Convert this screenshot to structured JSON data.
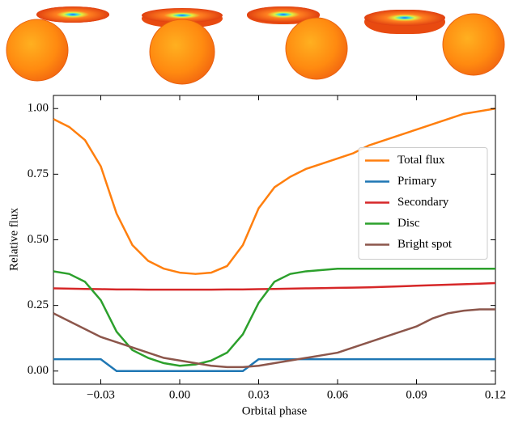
{
  "chart_data": {
    "type": "line",
    "xlabel": "Orbital phase",
    "ylabel": "Relative flux",
    "xlim": [
      -0.048,
      0.12
    ],
    "ylim": [
      -0.05,
      1.05
    ],
    "xticks": [
      {
        "value": -0.03,
        "label": "−0.03"
      },
      {
        "value": 0,
        "label": "0.00"
      },
      0.03,
      0.06,
      0.09,
      0.12
    ],
    "yticks": [
      {
        "value": 0,
        "label": "0.00"
      },
      0.25,
      {
        "value": 0.5,
        "label": "0.50"
      },
      0.75,
      {
        "value": 1,
        "label": "1.00"
      }
    ],
    "legend_loc": "center right",
    "x": [
      -0.048,
      -0.042,
      -0.036,
      -0.03,
      -0.024,
      -0.018,
      -0.012,
      -0.006,
      0,
      0.006,
      0.012,
      0.018,
      0.024,
      0.03,
      0.036,
      0.042,
      0.048,
      0.054,
      0.06,
      0.066,
      0.072,
      0.078,
      0.084,
      0.09,
      0.096,
      0.102,
      0.108,
      0.114,
      0.12
    ],
    "series": [
      {
        "name": "Total flux",
        "color": "#ff7f0e",
        "values": [
          0.96,
          0.93,
          0.88,
          0.78,
          0.6,
          0.48,
          0.42,
          0.39,
          0.375,
          0.37,
          0.375,
          0.4,
          0.48,
          0.62,
          0.7,
          0.74,
          0.77,
          0.79,
          0.81,
          0.83,
          0.86,
          0.88,
          0.9,
          0.92,
          0.94,
          0.96,
          0.98,
          0.99,
          1.0
        ]
      },
      {
        "name": "Primary",
        "color": "#1f77b4",
        "values": [
          0.045,
          0.045,
          0.045,
          0.045,
          0,
          0,
          0,
          0,
          0,
          0,
          0,
          0,
          0,
          0.045,
          0.045,
          0.045,
          0.045,
          0.045,
          0.045,
          0.045,
          0.045,
          0.045,
          0.045,
          0.045,
          0.045,
          0.045,
          0.045,
          0.045,
          0.045
        ]
      },
      {
        "name": "Secondary",
        "color": "#d62728",
        "values": [
          0.315,
          0.314,
          0.313,
          0.312,
          0.311,
          0.311,
          0.31,
          0.31,
          0.31,
          0.31,
          0.31,
          0.311,
          0.311,
          0.312,
          0.313,
          0.314,
          0.315,
          0.316,
          0.317,
          0.318,
          0.319,
          0.321,
          0.323,
          0.325,
          0.327,
          0.329,
          0.331,
          0.333,
          0.335
        ]
      },
      {
        "name": "Disc",
        "color": "#2ca02c",
        "values": [
          0.38,
          0.37,
          0.34,
          0.27,
          0.15,
          0.08,
          0.05,
          0.03,
          0.02,
          0.025,
          0.04,
          0.07,
          0.14,
          0.26,
          0.34,
          0.37,
          0.38,
          0.385,
          0.39,
          0.39,
          0.39,
          0.39,
          0.39,
          0.39,
          0.39,
          0.39,
          0.39,
          0.39,
          0.39
        ]
      },
      {
        "name": "Bright spot",
        "color": "#8c564b",
        "values": [
          0.22,
          0.19,
          0.16,
          0.13,
          0.11,
          0.09,
          0.07,
          0.05,
          0.04,
          0.03,
          0.02,
          0.015,
          0.015,
          0.02,
          0.03,
          0.04,
          0.05,
          0.06,
          0.07,
          0.09,
          0.11,
          0.13,
          0.15,
          0.17,
          0.2,
          0.22,
          0.23,
          0.235,
          0.235
        ]
      }
    ]
  }
}
